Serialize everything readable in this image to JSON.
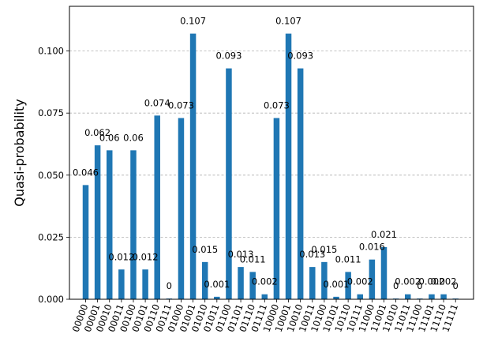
{
  "chart_data": {
    "type": "bar",
    "title": "",
    "xlabel": "",
    "ylabel": "Quasi-probability",
    "ylim": [
      0,
      0.118
    ],
    "yticks": [
      "0.000",
      "0.025",
      "0.050",
      "0.075",
      "0.100"
    ],
    "grid": "y-dashed",
    "bar_color": "#1f77b4",
    "categories": [
      "00000",
      "00001",
      "00010",
      "00011",
      "00100",
      "00101",
      "00110",
      "00111",
      "01000",
      "01001",
      "01010",
      "01011",
      "01100",
      "01101",
      "01110",
      "01111",
      "10000",
      "10001",
      "10010",
      "10011",
      "10100",
      "10101",
      "10110",
      "10111",
      "11000",
      "11001",
      "11010",
      "11011",
      "11100",
      "11101",
      "11110",
      "11111"
    ],
    "values": [
      0.046,
      0.062,
      0.06,
      0.012,
      0.06,
      0.012,
      0.074,
      0.0003,
      0.073,
      0.107,
      0.015,
      0.001,
      0.093,
      0.013,
      0.011,
      0.002,
      0.073,
      0.107,
      0.093,
      0.013,
      0.015,
      0.001,
      0.011,
      0.002,
      0.016,
      0.021,
      0.0003,
      0.002,
      0.0003,
      0.002,
      0.002,
      0.0003
    ],
    "labels": [
      "0.046",
      "0.062",
      "0.06",
      "0.012",
      "0.06",
      "0.012",
      "0.074",
      "0",
      "0.073",
      "0.107",
      "0.015",
      "0.001",
      "0.093",
      "0.013",
      "0.011",
      "0.002",
      "0.073",
      "0.107",
      "0.093",
      "0.013",
      "0.015",
      "0.001",
      "0.011",
      "0.002",
      "0.016",
      "0.021",
      "0",
      "0.002",
      "0",
      "0.002",
      "0.002",
      "0"
    ]
  }
}
